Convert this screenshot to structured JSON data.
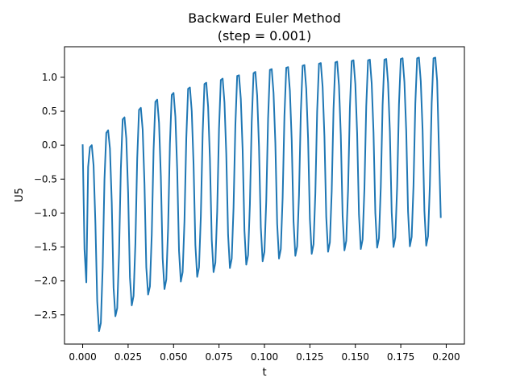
{
  "chart_data": {
    "type": "line",
    "title": "Backward Euler Method",
    "subtitle": "(step = 0.001)",
    "xlabel": "t",
    "ylabel": "U5",
    "xlim": [
      -0.01,
      0.21
    ],
    "ylim": [
      -2.93,
      1.45
    ],
    "xticks": [
      0.0,
      0.025,
      0.05,
      0.075,
      0.1,
      0.125,
      0.15,
      0.175,
      0.2
    ],
    "xtick_labels": [
      "0.000",
      "0.025",
      "0.050",
      "0.075",
      "0.100",
      "0.125",
      "0.150",
      "0.175",
      "0.200"
    ],
    "yticks": [
      -2.5,
      -2.0,
      -1.5,
      -1.0,
      -0.5,
      0.0,
      0.5,
      1.0
    ],
    "ytick_labels": [
      "−2.5",
      "−2.0",
      "−1.5",
      "−1.0",
      "−0.5",
      "0.0",
      "0.5",
      "1.0"
    ],
    "grid": false,
    "legend": "none",
    "colors": {
      "line": "#1f77b4",
      "frame": "#000000",
      "background": "#ffffff"
    },
    "series": [
      {
        "t": [
          0.0,
          0.001,
          0.002,
          0.003,
          0.004,
          0.005,
          0.006,
          0.007,
          0.008,
          0.009,
          0.01,
          0.011,
          0.012,
          0.013,
          0.014,
          0.015,
          0.016,
          0.017,
          0.018,
          0.019,
          0.02,
          0.021,
          0.022,
          0.023,
          0.024,
          0.025,
          0.026,
          0.027,
          0.028,
          0.029,
          0.03,
          0.031,
          0.032,
          0.033,
          0.034,
          0.035,
          0.036,
          0.037,
          0.038,
          0.039,
          0.04,
          0.041,
          0.042,
          0.043,
          0.044,
          0.045,
          0.046,
          0.047,
          0.048,
          0.049,
          0.05,
          0.051,
          0.052,
          0.053,
          0.054,
          0.055,
          0.056,
          0.057,
          0.058,
          0.059,
          0.06,
          0.061,
          0.062,
          0.063,
          0.064,
          0.065,
          0.066,
          0.067,
          0.068,
          0.069,
          0.07,
          0.071,
          0.072,
          0.073,
          0.074,
          0.075,
          0.076,
          0.077,
          0.078,
          0.079,
          0.08,
          0.081,
          0.082,
          0.083,
          0.084,
          0.085,
          0.086,
          0.087,
          0.088,
          0.089,
          0.09,
          0.091,
          0.092,
          0.093,
          0.094,
          0.095,
          0.096,
          0.097,
          0.098,
          0.099,
          0.1,
          0.101,
          0.102,
          0.103,
          0.104,
          0.105,
          0.106,
          0.107,
          0.108,
          0.109,
          0.11,
          0.111,
          0.112,
          0.113,
          0.114,
          0.115,
          0.116,
          0.117,
          0.118,
          0.119,
          0.12,
          0.121,
          0.122,
          0.123,
          0.124,
          0.125,
          0.126,
          0.127,
          0.128,
          0.129,
          0.13,
          0.131,
          0.132,
          0.133,
          0.134,
          0.135,
          0.136,
          0.137,
          0.138,
          0.139,
          0.14,
          0.141,
          0.142,
          0.143,
          0.144,
          0.145,
          0.146,
          0.147,
          0.148,
          0.149,
          0.15,
          0.151,
          0.152,
          0.153,
          0.154,
          0.155,
          0.156,
          0.157,
          0.158,
          0.159,
          0.16,
          0.161,
          0.162,
          0.163,
          0.164,
          0.165,
          0.166,
          0.167,
          0.168,
          0.169,
          0.17,
          0.171,
          0.172,
          0.173,
          0.174,
          0.175,
          0.176,
          0.177,
          0.178,
          0.179,
          0.18,
          0.181,
          0.182,
          0.183,
          0.184,
          0.185,
          0.186,
          0.187,
          0.188,
          0.189,
          0.19,
          0.191,
          0.192,
          0.193,
          0.194,
          0.195,
          0.196,
          0.197,
          0.198,
          0.199
        ],
        "u5": [
          0.0,
          -1.53,
          -2.02,
          -0.32,
          -0.03,
          0.0,
          -0.3,
          -1.15,
          -2.3,
          -2.74,
          -2.62,
          -1.8,
          -0.5,
          0.18,
          0.22,
          -0.05,
          -0.85,
          -2.1,
          -2.52,
          -2.4,
          -1.6,
          -0.35,
          0.38,
          0.41,
          0.1,
          -0.7,
          -1.95,
          -2.36,
          -2.22,
          -1.45,
          -0.2,
          0.52,
          0.55,
          0.23,
          -0.57,
          -1.8,
          -2.2,
          -2.08,
          -1.32,
          -0.08,
          0.64,
          0.67,
          0.33,
          -0.46,
          -1.67,
          -2.12,
          -1.98,
          -1.22,
          0.02,
          0.74,
          0.77,
          0.42,
          -0.36,
          -1.56,
          -2.01,
          -1.87,
          -1.12,
          0.1,
          0.83,
          0.85,
          0.5,
          -0.28,
          -1.47,
          -1.94,
          -1.8,
          -1.05,
          0.17,
          0.9,
          0.92,
          0.57,
          -0.2,
          -1.39,
          -1.87,
          -1.73,
          -0.98,
          0.24,
          0.96,
          0.98,
          0.63,
          -0.13,
          -1.32,
          -1.81,
          -1.67,
          -0.92,
          0.29,
          1.02,
          1.03,
          0.68,
          -0.07,
          -1.26,
          -1.76,
          -1.62,
          -0.87,
          0.34,
          1.06,
          1.08,
          0.73,
          -0.02,
          -1.21,
          -1.71,
          -1.57,
          -0.82,
          0.39,
          1.11,
          1.12,
          0.77,
          0.03,
          -1.16,
          -1.67,
          -1.53,
          -0.78,
          0.43,
          1.14,
          1.15,
          0.8,
          0.07,
          -1.12,
          -1.63,
          -1.49,
          -0.74,
          0.47,
          1.17,
          1.18,
          0.83,
          0.1,
          -1.09,
          -1.6,
          -1.46,
          -0.71,
          0.5,
          1.2,
          1.21,
          0.86,
          0.13,
          -1.06,
          -1.57,
          -1.43,
          -0.68,
          0.53,
          1.22,
          1.23,
          0.88,
          0.15,
          -1.04,
          -1.55,
          -1.41,
          -0.66,
          0.55,
          1.24,
          1.25,
          0.9,
          0.17,
          -1.02,
          -1.53,
          -1.39,
          -0.64,
          0.57,
          1.25,
          1.26,
          0.91,
          0.19,
          -1.0,
          -1.51,
          -1.37,
          -0.62,
          0.59,
          1.26,
          1.27,
          0.92,
          0.2,
          -0.99,
          -1.5,
          -1.36,
          -0.61,
          0.6,
          1.27,
          1.28,
          0.93,
          0.21,
          -0.98,
          -1.49,
          -1.35,
          -0.6,
          0.61,
          1.28,
          1.29,
          0.94,
          0.22,
          -0.97,
          -1.48,
          -1.34,
          -0.59,
          0.62,
          1.28,
          1.29,
          0.95,
          -0.07,
          -1.06
        ]
      }
    ]
  }
}
